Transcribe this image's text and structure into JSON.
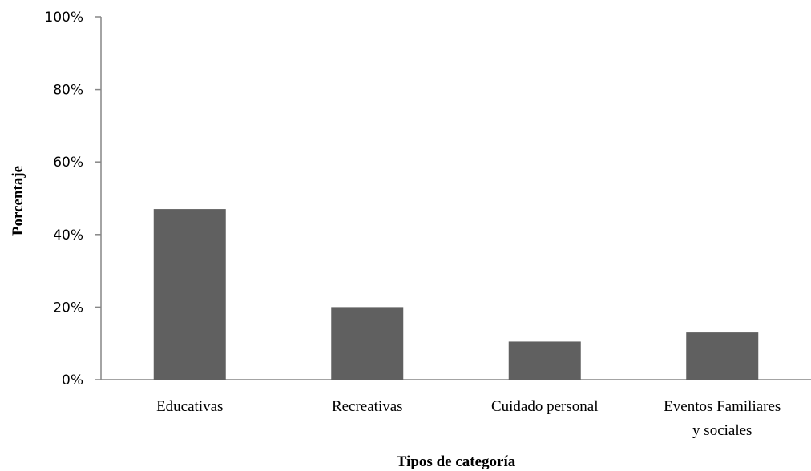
{
  "chart_data": {
    "type": "bar",
    "title": "",
    "xlabel": "Tipos de categoría",
    "ylabel": "Porcentaje",
    "categories": [
      [
        "Educativas"
      ],
      [
        "Recreativas"
      ],
      [
        "Cuidado personal"
      ],
      [
        "Eventos Familiares",
        "y sociales"
      ]
    ],
    "values": [
      47,
      20,
      10.5,
      13
    ],
    "ylim": [
      0,
      100
    ],
    "yticks": [
      0,
      20,
      40,
      60,
      80,
      100
    ],
    "ytick_labels": [
      "0%",
      "20%",
      "40%",
      "60%",
      "80%",
      "100%"
    ],
    "bar_color": "#606060",
    "axis_color": "#868686",
    "grid": false,
    "legend": "none"
  }
}
